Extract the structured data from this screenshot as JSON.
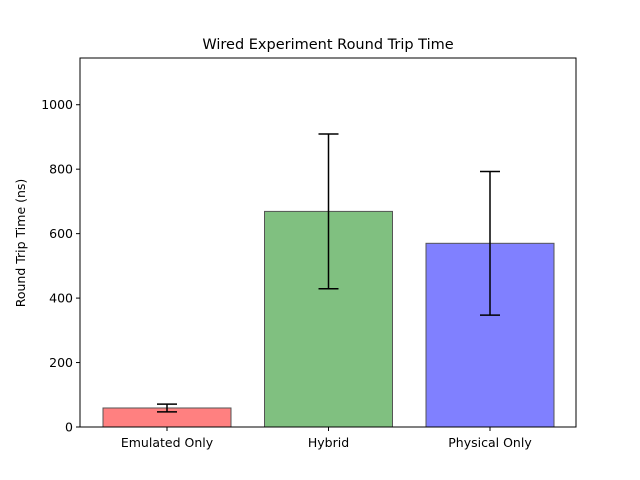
{
  "chart_data": {
    "type": "bar",
    "title": "Wired Experiment Round Trip Time",
    "xlabel": "",
    "ylabel": "Round Trip Time (ns)",
    "categories": [
      "Emulated Only",
      "Hybrid",
      "Physical Only"
    ],
    "values": [
      59,
      669,
      570
    ],
    "errors": [
      12,
      240,
      223
    ],
    "colors": [
      "#ff8080",
      "#80c080",
      "#8080ff"
    ],
    "edge_color": "#555555",
    "ylim": [
      0,
      1145
    ],
    "yticks": [
      0,
      200,
      400,
      600,
      800,
      1000
    ],
    "grid": false,
    "legend": "none"
  }
}
